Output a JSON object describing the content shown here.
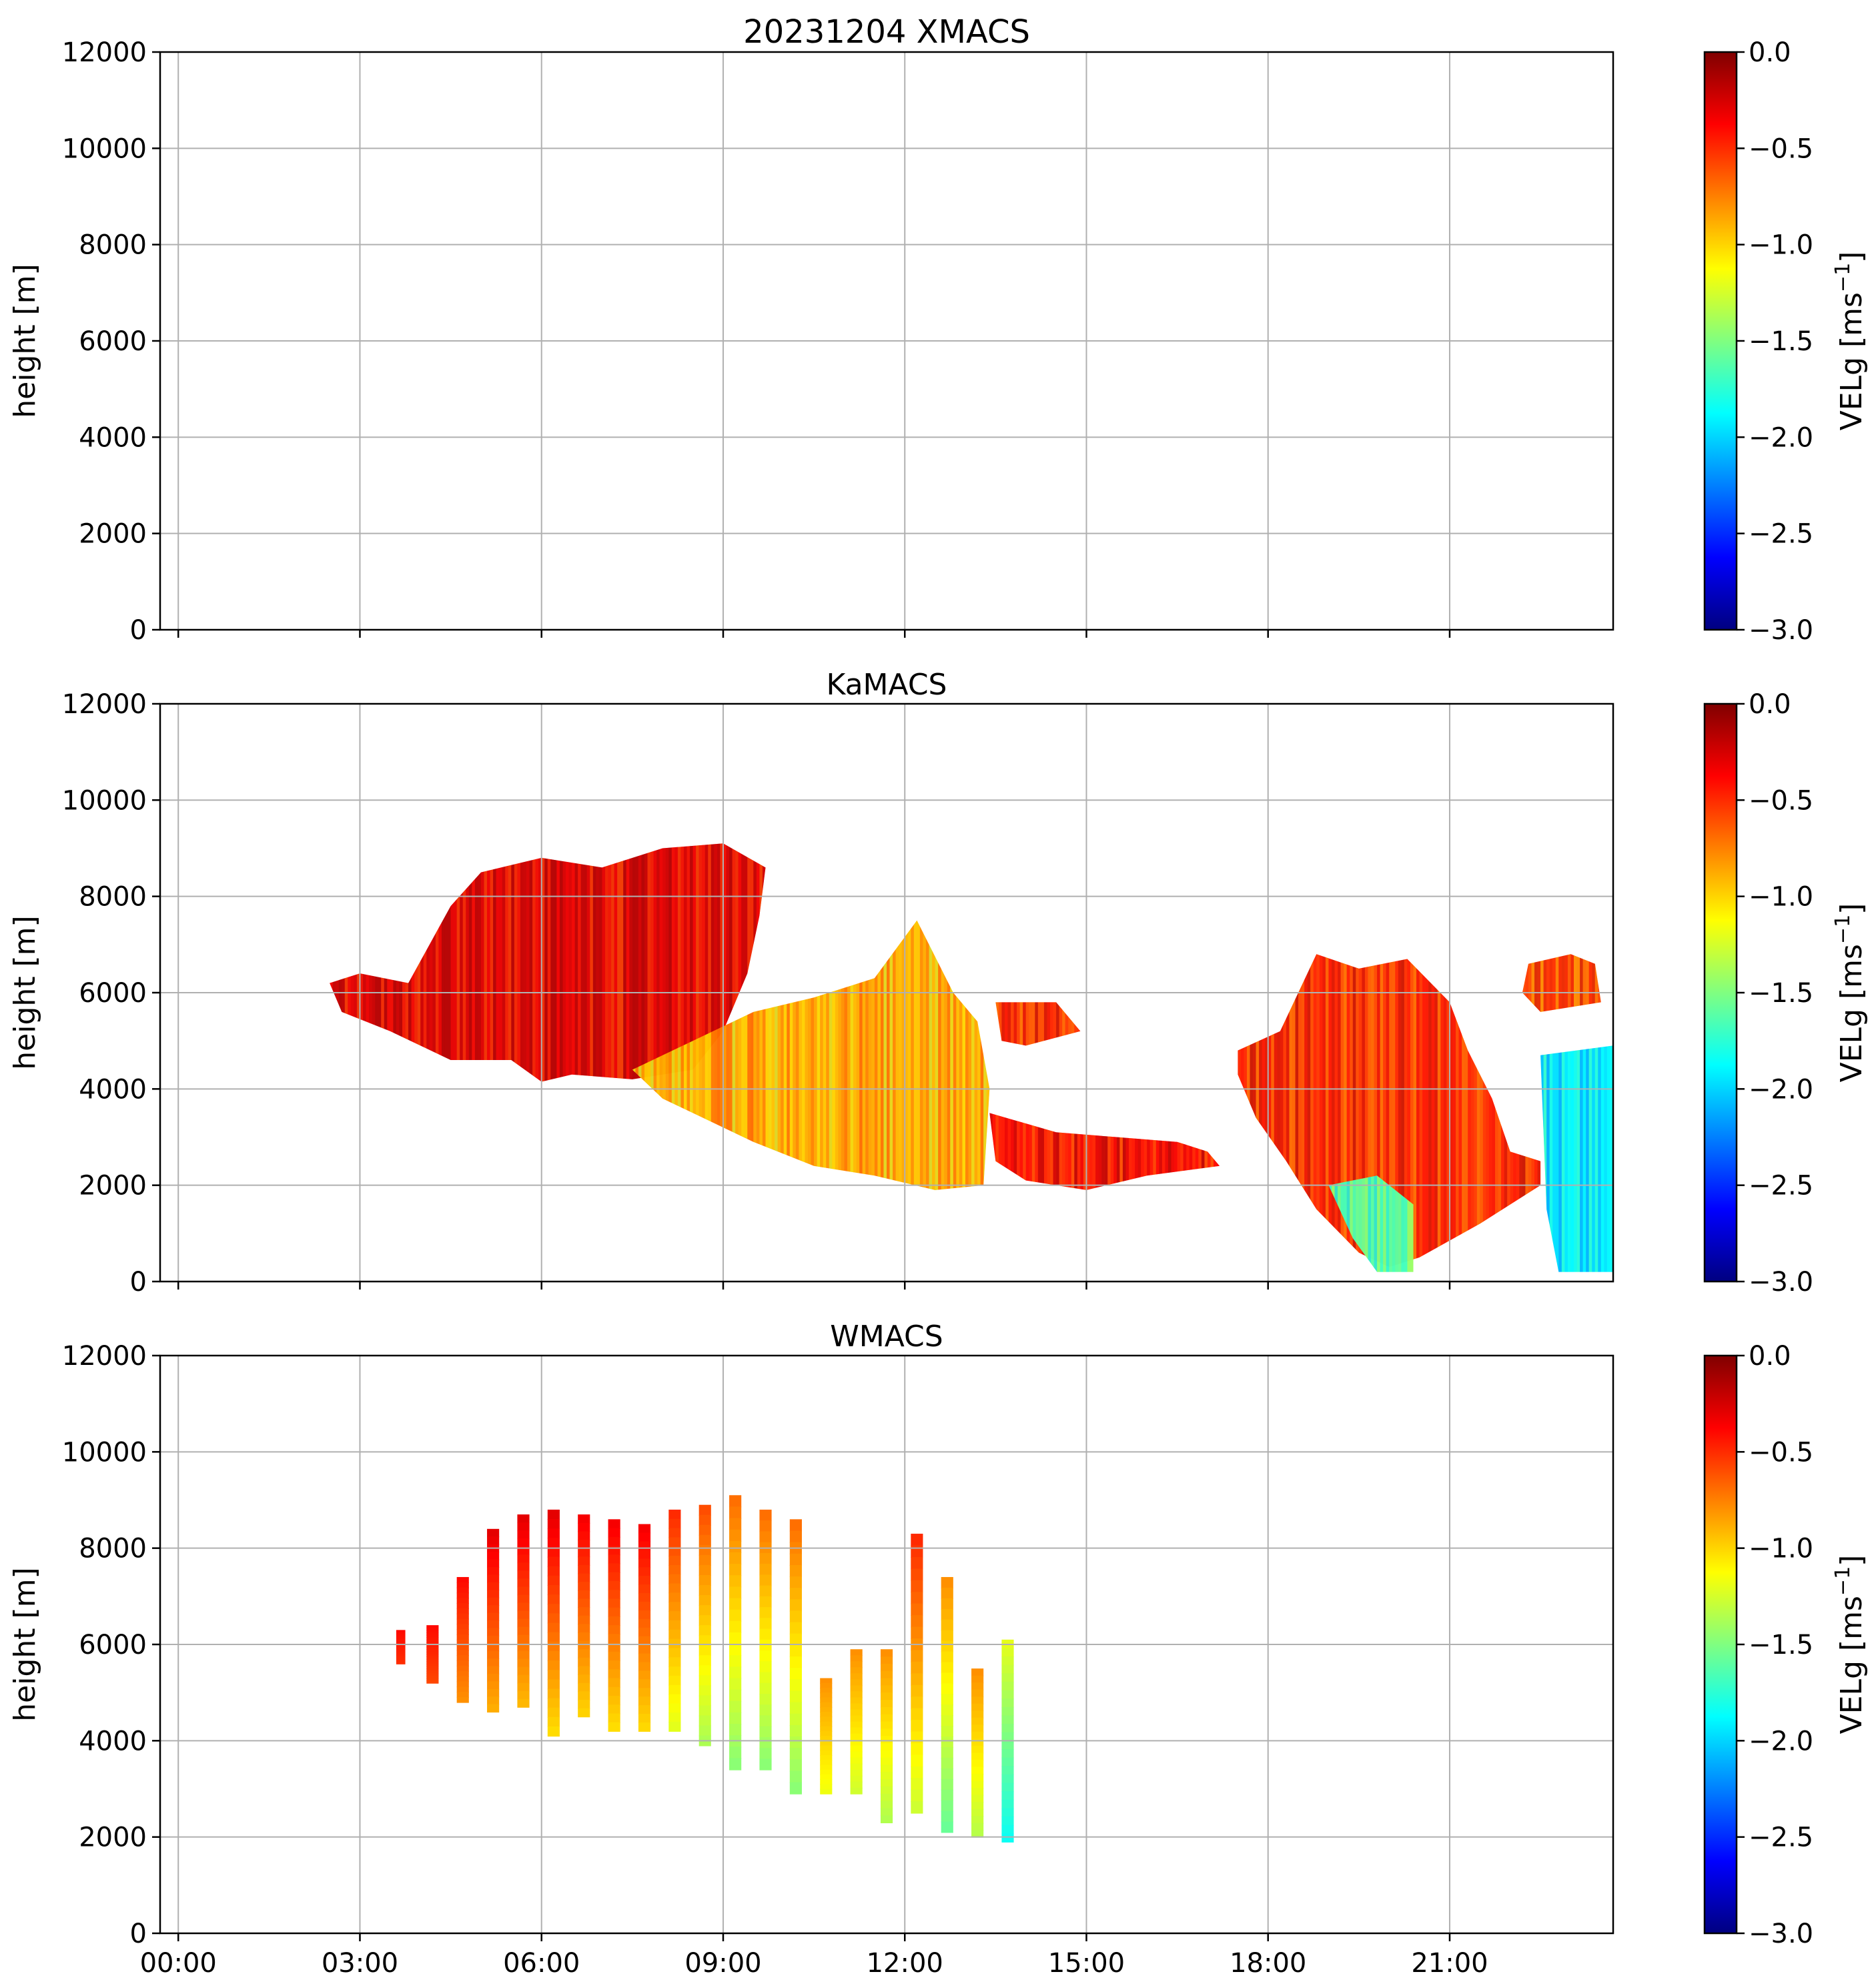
{
  "figure": {
    "colormap": "jet",
    "colormap_stops": [
      "#000080",
      "#0000ff",
      "#0080ff",
      "#00ffff",
      "#80ff80",
      "#ffff00",
      "#ff8000",
      "#ff0000",
      "#800000"
    ]
  },
  "chart_data": [
    {
      "type": "heatmap",
      "title": "20231204 XMACS",
      "ylabel": "height [m]",
      "xlabel": "",
      "xlim_hours": [
        -0.3,
        23.7
      ],
      "ylim": [
        0,
        12000
      ],
      "yticks": [
        0,
        2000,
        4000,
        6000,
        8000,
        10000,
        12000
      ],
      "xticks_hours": [
        0,
        3,
        6,
        9,
        12,
        15,
        18,
        21
      ],
      "xtick_labels": [
        "00:00",
        "03:00",
        "06:00",
        "09:00",
        "12:00",
        "15:00",
        "18:00",
        "21:00"
      ],
      "show_xtick_labels": false,
      "grid": true,
      "colorbar": {
        "label": "VELg [ms",
        "label_sup": "−1",
        "label_end": "]",
        "vmin": -3.0,
        "vmax": 0.0,
        "ticks": [
          0.0,
          -0.5,
          -1.0,
          -1.5,
          -2.0,
          -2.5,
          -3.0
        ],
        "tick_labels": [
          "0.0",
          "−0.5",
          "−1.0",
          "−1.5",
          "−2.0",
          "−2.5",
          "−3.0"
        ]
      },
      "regions": []
    },
    {
      "type": "heatmap",
      "title": "KaMACS",
      "ylabel": "height [m]",
      "xlabel": "",
      "xlim_hours": [
        -0.3,
        23.7
      ],
      "ylim": [
        0,
        12000
      ],
      "yticks": [
        0,
        2000,
        4000,
        6000,
        8000,
        10000,
        12000
      ],
      "xticks_hours": [
        0,
        3,
        6,
        9,
        12,
        15,
        18,
        21
      ],
      "xtick_labels": [
        "00:00",
        "03:00",
        "06:00",
        "09:00",
        "12:00",
        "15:00",
        "18:00",
        "21:00"
      ],
      "show_xtick_labels": false,
      "grid": true,
      "colorbar": {
        "label": "VELg [ms",
        "label_sup": "−1",
        "label_end": "]",
        "vmin": -3.0,
        "vmax": 0.0,
        "ticks": [
          0.0,
          -0.5,
          -1.0,
          -1.5,
          -2.0,
          -2.5,
          -3.0
        ],
        "tick_labels": [
          "0.0",
          "−0.5",
          "−1.0",
          "−1.5",
          "−2.0",
          "−2.5",
          "−3.0"
        ]
      },
      "regions": [
        {
          "name": "main-cloud-top",
          "value": -0.3,
          "points": [
            [
              2.5,
              6200
            ],
            [
              3.0,
              6400
            ],
            [
              3.8,
              6200
            ],
            [
              4.5,
              7800
            ],
            [
              5.0,
              8500
            ],
            [
              6.0,
              8800
            ],
            [
              7.0,
              8600
            ],
            [
              8.0,
              9000
            ],
            [
              9.0,
              9100
            ],
            [
              9.7,
              8600
            ],
            [
              9.6,
              7600
            ],
            [
              9.4,
              6400
            ],
            [
              9.0,
              5200
            ],
            [
              8.5,
              4400
            ],
            [
              7.5,
              4200
            ],
            [
              6.5,
              4300
            ],
            [
              6.0,
              4150
            ],
            [
              5.5,
              4600
            ],
            [
              4.5,
              4600
            ],
            [
              3.5,
              5200
            ],
            [
              2.7,
              5600
            ]
          ]
        },
        {
          "name": "main-cloud-lower",
          "value": -0.9,
          "points": [
            [
              7.5,
              4400
            ],
            [
              8.5,
              5000
            ],
            [
              9.5,
              5600
            ],
            [
              10.5,
              5900
            ],
            [
              11.5,
              6300
            ],
            [
              12.2,
              7500
            ],
            [
              12.8,
              6000
            ],
            [
              13.2,
              5400
            ],
            [
              13.4,
              4000
            ],
            [
              13.3,
              2000
            ],
            [
              12.5,
              1900
            ],
            [
              11.5,
              2200
            ],
            [
              10.5,
              2400
            ],
            [
              9.5,
              2900
            ],
            [
              8.5,
              3500
            ],
            [
              8.0,
              3800
            ]
          ]
        },
        {
          "name": "lower-shelf",
          "value": -0.4,
          "points": [
            [
              13.4,
              3500
            ],
            [
              14.5,
              3100
            ],
            [
              15.5,
              3000
            ],
            [
              16.5,
              2900
            ],
            [
              17.0,
              2700
            ],
            [
              17.2,
              2400
            ],
            [
              16.0,
              2200
            ],
            [
              15.0,
              1900
            ],
            [
              14.0,
              2100
            ],
            [
              13.5,
              2500
            ]
          ]
        },
        {
          "name": "mid-patch",
          "value": -0.5,
          "points": [
            [
              13.5,
              5800
            ],
            [
              14.5,
              5800
            ],
            [
              14.9,
              5200
            ],
            [
              14.0,
              4900
            ],
            [
              13.6,
              5000
            ]
          ]
        },
        {
          "name": "evening-cloud",
          "value": -0.5,
          "points": [
            [
              17.5,
              4800
            ],
            [
              18.2,
              5200
            ],
            [
              18.8,
              6800
            ],
            [
              19.5,
              6500
            ],
            [
              20.3,
              6700
            ],
            [
              21.0,
              5800
            ],
            [
              21.3,
              4800
            ],
            [
              21.7,
              3800
            ],
            [
              22.0,
              2700
            ],
            [
              22.5,
              2500
            ],
            [
              22.5,
              2000
            ],
            [
              21.5,
              1200
            ],
            [
              20.5,
              500
            ],
            [
              20.0,
              300
            ],
            [
              19.5,
              600
            ],
            [
              18.8,
              1500
            ],
            [
              18.3,
              2500
            ],
            [
              17.8,
              3400
            ],
            [
              17.5,
              4300
            ]
          ]
        },
        {
          "name": "evening-low-fall",
          "value": -1.6,
          "points": [
            [
              19.0,
              2000
            ],
            [
              19.8,
              2200
            ],
            [
              20.4,
              1600
            ],
            [
              20.4,
              200
            ],
            [
              19.8,
              200
            ],
            [
              19.4,
              900
            ]
          ]
        },
        {
          "name": "late-top-band",
          "value": -0.6,
          "points": [
            [
              22.3,
              6600
            ],
            [
              23.0,
              6800
            ],
            [
              23.4,
              6600
            ],
            [
              23.5,
              5800
            ],
            [
              22.5,
              5600
            ],
            [
              22.2,
              6000
            ]
          ]
        },
        {
          "name": "late-fall-streak",
          "value": -1.9,
          "points": [
            [
              22.5,
              4700
            ],
            [
              23.7,
              4900
            ],
            [
              23.7,
              200
            ],
            [
              22.8,
              200
            ],
            [
              22.6,
              1500
            ]
          ]
        }
      ]
    },
    {
      "type": "heatmap",
      "title": "WMACS",
      "ylabel": "height [m]",
      "xlabel": "",
      "xlim_hours": [
        -0.3,
        23.7
      ],
      "ylim": [
        0,
        12000
      ],
      "yticks": [
        0,
        2000,
        4000,
        6000,
        8000,
        10000,
        12000
      ],
      "xticks_hours": [
        0,
        3,
        6,
        9,
        12,
        15,
        18,
        21
      ],
      "xtick_labels": [
        "00:00",
        "03:00",
        "06:00",
        "09:00",
        "12:00",
        "15:00",
        "18:00",
        "21:00"
      ],
      "show_xtick_labels": true,
      "grid": true,
      "colorbar": {
        "label": "VELg [ms",
        "label_sup": "−1",
        "label_end": "]",
        "vmin": -3.0,
        "vmax": 0.0,
        "ticks": [
          0.0,
          -0.5,
          -1.0,
          -1.5,
          -2.0,
          -2.5,
          -3.0
        ],
        "tick_labels": [
          "0.0",
          "−0.5",
          "−1.0",
          "−1.5",
          "−2.0",
          "−2.5",
          "−3.0"
        ]
      },
      "stripes": [
        {
          "t0": 3.6,
          "t1": 3.75,
          "ytop": 6300,
          "ybot": 5600,
          "value": -0.4
        },
        {
          "t0": 4.1,
          "t1": 4.3,
          "ytop": 6400,
          "ybot": 5200,
          "value": -0.4
        },
        {
          "t0": 4.6,
          "t1": 4.8,
          "ytop": 7400,
          "ybot": 4800,
          "value": -0.4
        },
        {
          "t0": 5.1,
          "t1": 5.3,
          "ytop": 8400,
          "ybot": 4600,
          "value": -0.3
        },
        {
          "t0": 5.6,
          "t1": 5.8,
          "ytop": 8700,
          "ybot": 4700,
          "value": -0.3
        },
        {
          "t0": 6.1,
          "t1": 6.3,
          "ytop": 8800,
          "ybot": 4100,
          "value": -0.3
        },
        {
          "t0": 6.6,
          "t1": 6.8,
          "ytop": 8700,
          "ybot": 4500,
          "value": -0.35
        },
        {
          "t0": 7.1,
          "t1": 7.3,
          "ytop": 8600,
          "ybot": 4200,
          "value": -0.35
        },
        {
          "t0": 7.6,
          "t1": 7.8,
          "ytop": 8500,
          "ybot": 4200,
          "value": -0.35
        },
        {
          "t0": 8.1,
          "t1": 8.3,
          "ytop": 8800,
          "ybot": 4200,
          "value": -0.5
        },
        {
          "t0": 8.6,
          "t1": 8.8,
          "ytop": 8900,
          "ybot": 3900,
          "value": -0.6
        },
        {
          "t0": 9.1,
          "t1": 9.3,
          "ytop": 9100,
          "ybot": 3400,
          "value": -0.7
        },
        {
          "t0": 9.6,
          "t1": 9.8,
          "ytop": 8800,
          "ybot": 3400,
          "value": -0.7
        },
        {
          "t0": 10.1,
          "t1": 10.3,
          "ytop": 8600,
          "ybot": 2900,
          "value": -0.7
        },
        {
          "t0": 10.6,
          "t1": 10.8,
          "ytop": 5300,
          "ybot": 2900,
          "value": -0.8
        },
        {
          "t0": 11.1,
          "t1": 11.3,
          "ytop": 5900,
          "ybot": 2900,
          "value": -0.8
        },
        {
          "t0": 11.6,
          "t1": 11.8,
          "ytop": 5900,
          "ybot": 2300,
          "value": -0.8
        },
        {
          "t0": 12.1,
          "t1": 12.3,
          "ytop": 8300,
          "ybot": 2500,
          "value": -0.5
        },
        {
          "t0": 12.6,
          "t1": 12.8,
          "ytop": 7400,
          "ybot": 2100,
          "value": -0.8
        },
        {
          "t0": 13.1,
          "t1": 13.3,
          "ytop": 5500,
          "ybot": 2000,
          "value": -0.8
        },
        {
          "t0": 13.6,
          "t1": 13.8,
          "ytop": 6100,
          "ybot": 1900,
          "value": -1.2
        }
      ]
    }
  ]
}
